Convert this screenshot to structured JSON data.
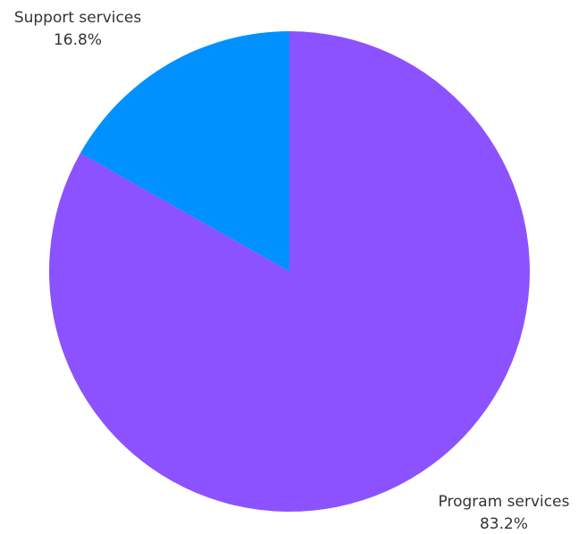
{
  "chart_data": {
    "type": "pie",
    "title": "",
    "start_angle": "12 o'clock",
    "direction": "clockwise",
    "slices": [
      {
        "name": "Program services",
        "value": 83.2,
        "value_label": "83.2%",
        "color": "#8c52ff"
      },
      {
        "name": "Support services",
        "value": 16.8,
        "value_label": "16.8%",
        "color": "#0091ff"
      }
    ]
  }
}
